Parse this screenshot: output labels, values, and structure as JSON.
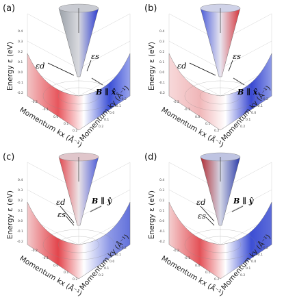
{
  "panels": [
    {
      "label": "(a)",
      "field": "B ∥ x̂",
      "eps_d": "εd",
      "eps_s": "εs",
      "bowl_left": "#e8565d",
      "bowl_right": "#3b4fd6",
      "cone_left": "#9aa0a8",
      "cone_right": "#2c3bd0"
    },
    {
      "label": "(b)",
      "field": "B ∥ x̂",
      "eps_d": "εd",
      "eps_s": "εs",
      "bowl_left": "#f0b6b8",
      "bowl_right": "#3948d2",
      "cone_left": "#4a5bd8",
      "cone_right": "#d5333a"
    },
    {
      "label": "(c)",
      "field": "B ∥ ŷ",
      "eps_d": "εd",
      "eps_s": "εs",
      "bowl_left": "#e3454c",
      "bowl_right": "#8d98e6",
      "cone_left": "#e2474e",
      "cone_right": "#4b5bd8"
    },
    {
      "label": "(d)",
      "field": "B ∥ ŷ",
      "eps_d": "εd",
      "eps_s": "εs",
      "bowl_left": "#e45157",
      "bowl_right": "#3d4fd4",
      "cone_left": "#b12c33",
      "cone_right": "#2b3aa8"
    }
  ],
  "axes": {
    "energy": "Energy ε (eV)",
    "kx": "Momentum kx (Å⁻¹)",
    "ky": "Momentum ky (Å⁻¹)",
    "energy_ticks": [
      "0.4",
      "0.3",
      "0.2",
      "0.1",
      "0.0",
      "-0.1",
      "-0.2"
    ],
    "kx_ticks": [
      "-0.2",
      "-0.1",
      "0.0",
      "0.1",
      "0.2"
    ],
    "ky_ticks": [
      "-0.2",
      "-0.1",
      "0.0",
      "0.1",
      "0.2"
    ]
  }
}
